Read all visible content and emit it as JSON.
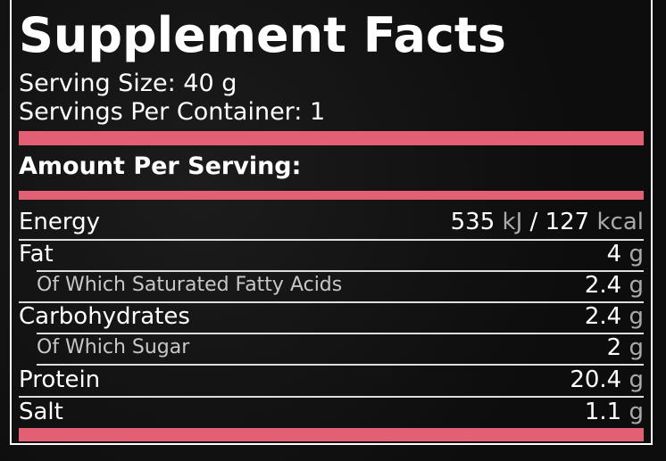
{
  "title": "Supplement Facts",
  "serving_size": {
    "label": "Serving Size:",
    "value": "40 g"
  },
  "servings_per_container": {
    "label": "Servings Per Container:",
    "value": "1"
  },
  "amount_per_serving": "Amount Per Serving:",
  "accent_color": "#e35f73",
  "rows": [
    {
      "label": "Energy",
      "value": "535",
      "unit": "kJ",
      "sep": " / ",
      "value2": "127",
      "unit2": "kcal"
    },
    {
      "label": "Fat",
      "value": "4",
      "unit": "g"
    },
    {
      "label": "Of Which Saturated Fatty Acids",
      "value": "2.4",
      "unit": "g"
    },
    {
      "label": "Carbohydrates",
      "value": "2.4",
      "unit": "g"
    },
    {
      "label": "Of Which Sugar",
      "value": "2",
      "unit": "g"
    },
    {
      "label": "Protein",
      "value": "20.4",
      "unit": "g"
    },
    {
      "label": "Salt",
      "value": "1.1",
      "unit": "g"
    }
  ]
}
